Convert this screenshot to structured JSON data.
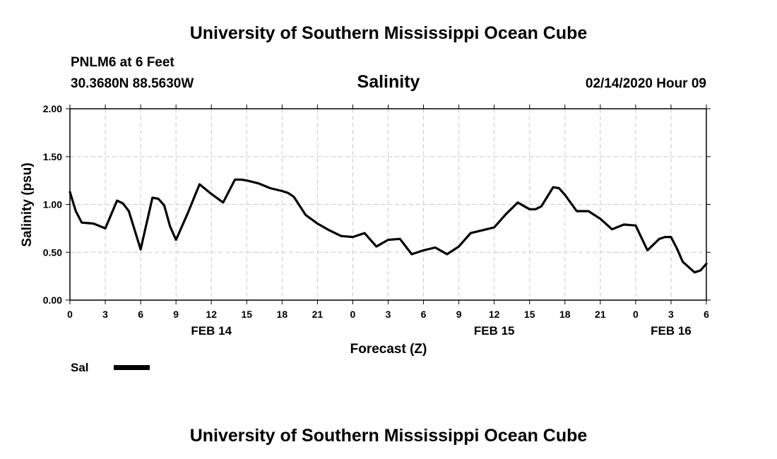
{
  "header": {
    "title": "University of Southern Mississippi Ocean Cube",
    "station": "PNLM6 at 6 Feet",
    "coords": "30.3680N 88.5630W",
    "variable": "Salinity",
    "datetime": "02/14/2020 Hour 09"
  },
  "footer": {
    "title": "University of Southern Mississippi Ocean Cube"
  },
  "legend": {
    "label": "Sal",
    "color": "#000000"
  },
  "chart_data": {
    "type": "line",
    "title": "Salinity",
    "xlabel": "Forecast (Z)",
    "ylabel": "Salinity (psu)",
    "ylim": [
      0,
      2
    ],
    "xlim": [
      0,
      54
    ],
    "grid": true,
    "legend_position": "bottom-left",
    "y_ticks": [
      "0.00",
      "0.50",
      "1.00",
      "1.50",
      "2.00"
    ],
    "x_ticks": [
      {
        "hour": 0,
        "label": "0"
      },
      {
        "hour": 3,
        "label": "3"
      },
      {
        "hour": 6,
        "label": "6"
      },
      {
        "hour": 9,
        "label": "9"
      },
      {
        "hour": 12,
        "label": "12"
      },
      {
        "hour": 15,
        "label": "15"
      },
      {
        "hour": 18,
        "label": "18"
      },
      {
        "hour": 21,
        "label": "21"
      },
      {
        "hour": 24,
        "label": "0"
      },
      {
        "hour": 27,
        "label": "3"
      },
      {
        "hour": 30,
        "label": "6"
      },
      {
        "hour": 33,
        "label": "9"
      },
      {
        "hour": 36,
        "label": "12"
      },
      {
        "hour": 39,
        "label": "15"
      },
      {
        "hour": 42,
        "label": "18"
      },
      {
        "hour": 45,
        "label": "21"
      },
      {
        "hour": 48,
        "label": "0"
      },
      {
        "hour": 51,
        "label": "3"
      },
      {
        "hour": 54,
        "label": "6"
      }
    ],
    "date_labels": [
      {
        "hour": 12,
        "label": "FEB 14"
      },
      {
        "hour": 36,
        "label": "FEB 15"
      },
      {
        "hour": 51,
        "label": "FEB 16"
      }
    ],
    "series": [
      {
        "name": "Sal",
        "x": [
          0,
          0.5,
          1,
          2,
          3,
          4,
          4.5,
          5,
          6,
          7,
          7.5,
          8,
          8.5,
          9,
          10,
          11,
          12,
          13,
          14,
          14.5,
          15,
          16,
          17,
          18,
          18.5,
          19,
          20,
          21,
          22,
          23,
          24,
          25,
          26,
          27,
          28,
          28.5,
          29,
          30,
          31,
          32,
          33,
          34,
          35,
          36,
          37,
          38,
          39,
          39.5,
          40,
          41,
          41.5,
          42,
          43,
          44,
          45,
          46,
          47,
          48,
          49,
          50,
          50.5,
          51,
          51.5,
          52,
          53,
          53.5,
          54
        ],
        "values": [
          1.13,
          0.93,
          0.81,
          0.8,
          0.75,
          1.04,
          1.01,
          0.93,
          0.53,
          1.07,
          1.06,
          0.99,
          0.77,
          0.63,
          0.91,
          1.21,
          1.11,
          1.02,
          1.26,
          1.26,
          1.25,
          1.22,
          1.17,
          1.14,
          1.12,
          1.08,
          0.89,
          0.8,
          0.73,
          0.67,
          0.66,
          0.7,
          0.56,
          0.63,
          0.64,
          0.56,
          0.48,
          0.52,
          0.55,
          0.48,
          0.56,
          0.7,
          0.73,
          0.76,
          0.9,
          1.02,
          0.95,
          0.95,
          0.98,
          1.18,
          1.17,
          1.1,
          0.93,
          0.93,
          0.85,
          0.74,
          0.79,
          0.78,
          0.52,
          0.64,
          0.66,
          0.66,
          0.54,
          0.4,
          0.29,
          0.31,
          0.38
        ]
      }
    ]
  }
}
